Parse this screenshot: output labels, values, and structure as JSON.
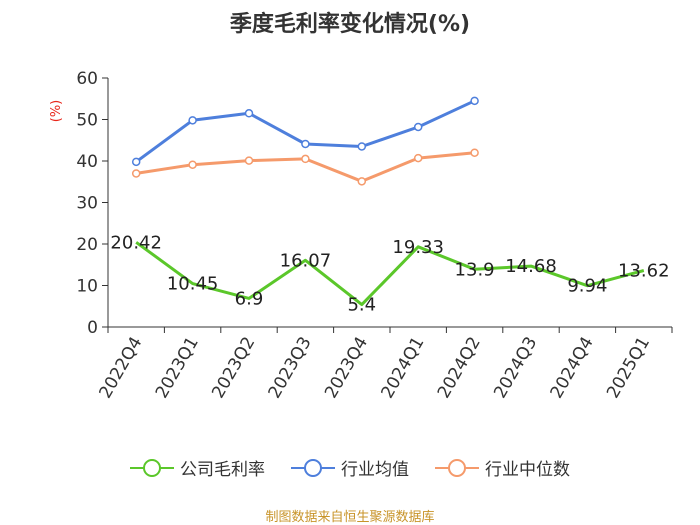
{
  "chart_data": {
    "type": "line",
    "title": "季度毛利率变化情况(%)",
    "ylabel": "(%)",
    "ylim": [
      0,
      60
    ],
    "yticks": [
      "0",
      "10",
      "20",
      "30",
      "40",
      "50",
      "60"
    ],
    "categories": [
      "2022Q4",
      "2023Q1",
      "2023Q2",
      "2023Q3",
      "2023Q4",
      "2024Q1",
      "2024Q2",
      "2024Q3",
      "2024Q4",
      "2025Q1"
    ],
    "series": [
      {
        "name": "公司毛利率",
        "color": "#5bc72a",
        "showMarkers": false,
        "showLabels": true,
        "values": [
          20.42,
          10.45,
          6.9,
          16.07,
          5.4,
          19.33,
          13.9,
          14.68,
          9.94,
          13.62
        ],
        "labels": [
          "20.42",
          "10.45",
          "6.9",
          "16.07",
          "5.4",
          "19.33",
          "13.9",
          "14.68",
          "9.94",
          "13.62"
        ]
      },
      {
        "name": "行业均值",
        "color": "#4e7fdc",
        "showMarkers": true,
        "showLabels": false,
        "values": [
          39.8,
          49.8,
          51.5,
          44.1,
          43.5,
          48.2,
          54.5,
          null,
          null,
          null
        ]
      },
      {
        "name": "行业中位数",
        "color": "#f59a6b",
        "showMarkers": true,
        "showLabels": false,
        "values": [
          37.0,
          39.1,
          40.1,
          40.5,
          35.1,
          40.7,
          42.0,
          null,
          null,
          null
        ]
      }
    ],
    "legend_position": "bottom",
    "grid": false
  },
  "source": "制图数据来自恒生聚源数据库"
}
